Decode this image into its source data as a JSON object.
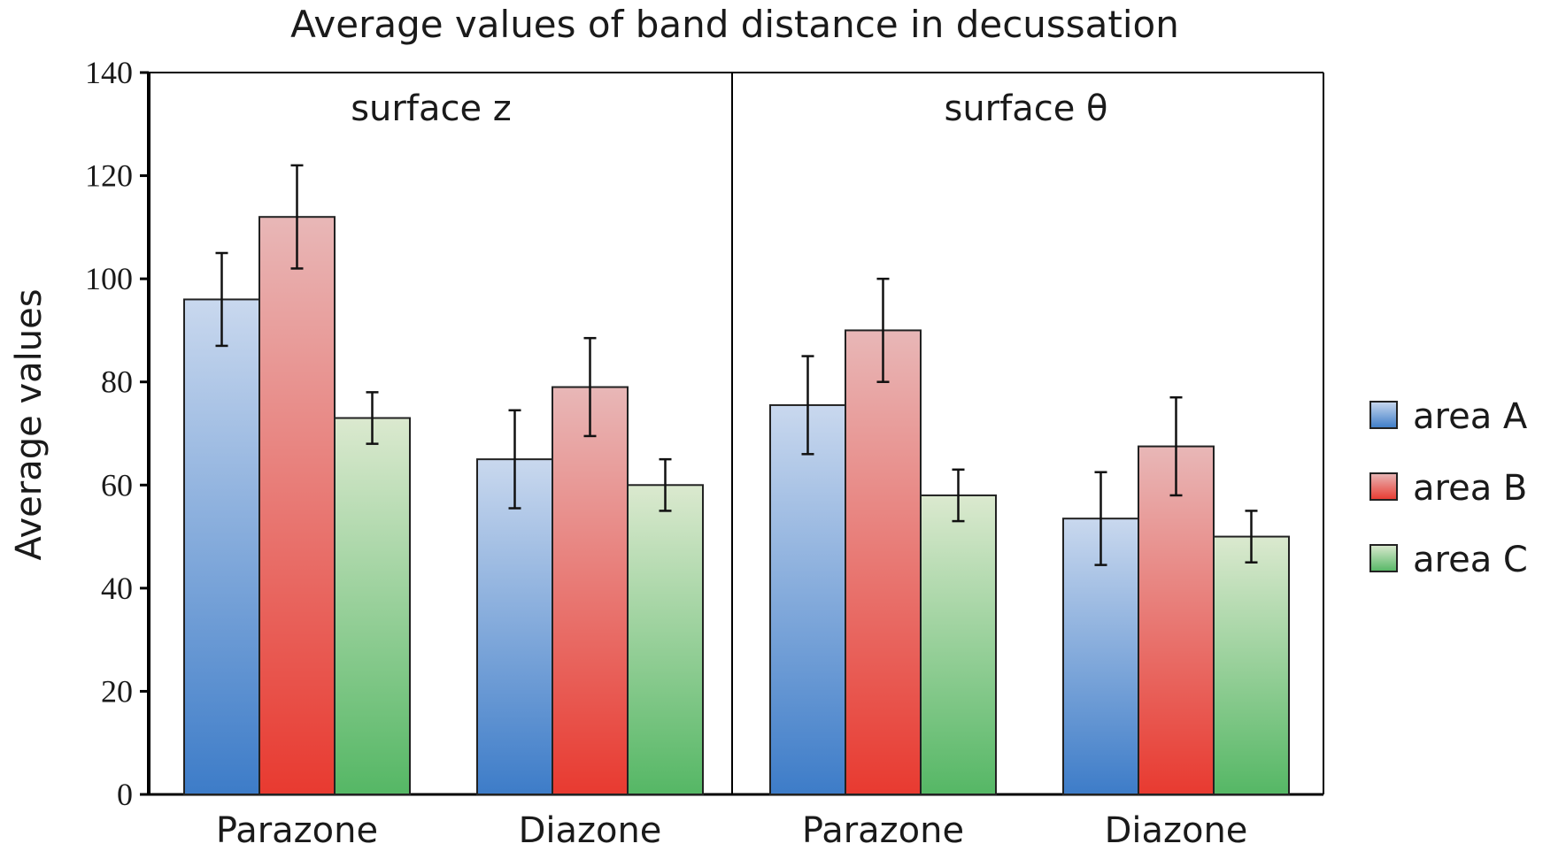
{
  "chart_data": {
    "type": "bar",
    "title": "Average values of band distance in decussation",
    "ylabel": "Average values",
    "xlabel": "",
    "ylim": [
      0,
      140
    ],
    "yticks": [
      0,
      20,
      40,
      60,
      80,
      100,
      120,
      140
    ],
    "grid": false,
    "legend_position": "right",
    "series_colors": {
      "area A": "#4a86cc",
      "area B": "#e8453c",
      "area C": "#5cbb6c"
    },
    "series_names": [
      "area A",
      "area B",
      "area C"
    ],
    "panels": [
      {
        "label": "surface z",
        "categories": [
          "Parazone",
          "Diazone"
        ],
        "series": [
          {
            "name": "area A",
            "values": [
              96,
              65
            ],
            "errors": [
              9,
              9.5
            ]
          },
          {
            "name": "area B",
            "values": [
              112,
              79
            ],
            "errors": [
              10,
              9.5
            ]
          },
          {
            "name": "area C",
            "values": [
              73,
              60
            ],
            "errors": [
              5,
              5
            ]
          }
        ]
      },
      {
        "label": "surface θ",
        "categories": [
          "Parazone",
          "Diazone"
        ],
        "series": [
          {
            "name": "area A",
            "values": [
              75.5,
              53.5
            ],
            "errors": [
              9.5,
              9
            ]
          },
          {
            "name": "area B",
            "values": [
              90,
              67.5
            ],
            "errors": [
              10,
              9.5
            ]
          },
          {
            "name": "area C",
            "values": [
              58,
              50
            ],
            "errors": [
              5,
              5
            ]
          }
        ]
      }
    ]
  }
}
